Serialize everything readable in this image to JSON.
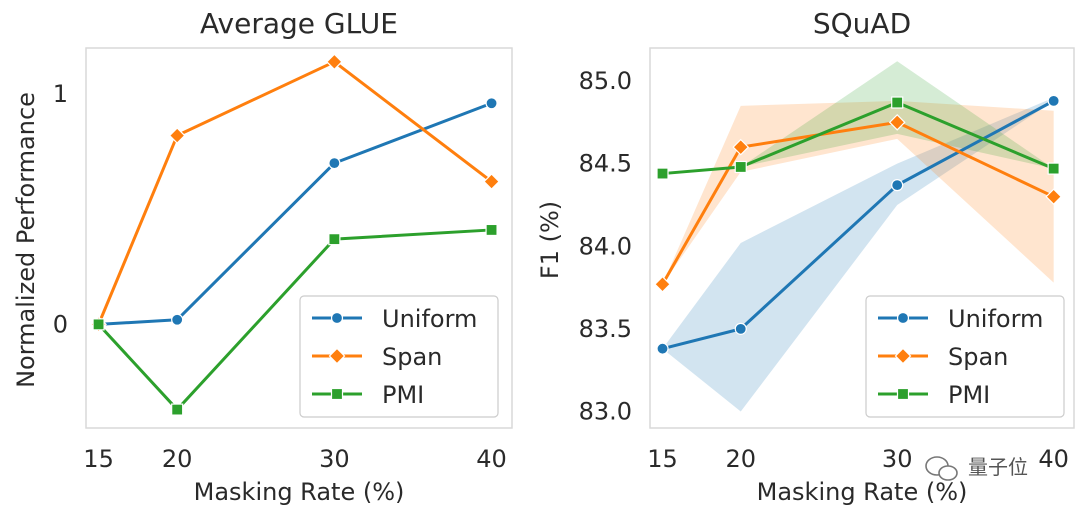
{
  "colors": {
    "Uniform": "#1f77b4",
    "Span": "#ff7f0e",
    "PMI": "#2ca02c"
  },
  "watermark": "量子位",
  "chart_data": [
    {
      "type": "line",
      "title": "Average GLUE",
      "xlabel": "Masking Rate (%)",
      "ylabel": "Normalized Performance",
      "x": [
        15,
        20,
        30,
        40
      ],
      "x_ticks": [
        "15",
        "20",
        "30",
        "40"
      ],
      "xlim": [
        14.2,
        41.3
      ],
      "y_ticks": [
        0,
        1
      ],
      "y_tick_labels": [
        "0",
        "1"
      ],
      "ylim": [
        -0.45,
        1.2
      ],
      "legend": "lower-right",
      "series": [
        {
          "name": "Uniform",
          "marker": "circle",
          "values": [
            0.0,
            0.02,
            0.7,
            0.96
          ]
        },
        {
          "name": "Span",
          "marker": "diamond",
          "values": [
            0.0,
            0.82,
            1.14,
            0.62
          ]
        },
        {
          "name": "PMI",
          "marker": "square",
          "values": [
            0.0,
            -0.37,
            0.37,
            0.41
          ]
        }
      ]
    },
    {
      "type": "line",
      "title": "SQuAD",
      "xlabel": "Masking Rate (%)",
      "ylabel": "F1 (%)",
      "x": [
        15,
        20,
        30,
        40
      ],
      "x_ticks": [
        "15",
        "20",
        "30",
        "40"
      ],
      "xlim": [
        14.2,
        41.3
      ],
      "y_ticks": [
        83.0,
        83.5,
        84.0,
        84.5,
        85.0
      ],
      "y_tick_labels": [
        "83.0",
        "83.5",
        "84.0",
        "84.5",
        "85.0"
      ],
      "ylim": [
        82.9,
        85.2
      ],
      "legend": "lower-right",
      "series": [
        {
          "name": "Uniform",
          "marker": "circle",
          "values": [
            83.38,
            83.5,
            84.37,
            84.88
          ],
          "band_low": [
            83.38,
            83.0,
            84.25,
            84.88
          ],
          "band_high": [
            83.38,
            84.02,
            84.5,
            84.9
          ]
        },
        {
          "name": "Span",
          "marker": "diamond",
          "values": [
            83.77,
            84.6,
            84.75,
            84.3
          ],
          "band_low": [
            83.77,
            84.45,
            84.65,
            83.78
          ],
          "band_high": [
            83.77,
            84.85,
            84.88,
            84.82
          ]
        },
        {
          "name": "PMI",
          "marker": "square",
          "values": [
            84.44,
            84.48,
            84.87,
            84.47
          ],
          "band_low": [
            84.44,
            84.48,
            84.68,
            84.47
          ],
          "band_high": [
            84.44,
            84.48,
            85.12,
            84.47
          ]
        }
      ]
    }
  ]
}
